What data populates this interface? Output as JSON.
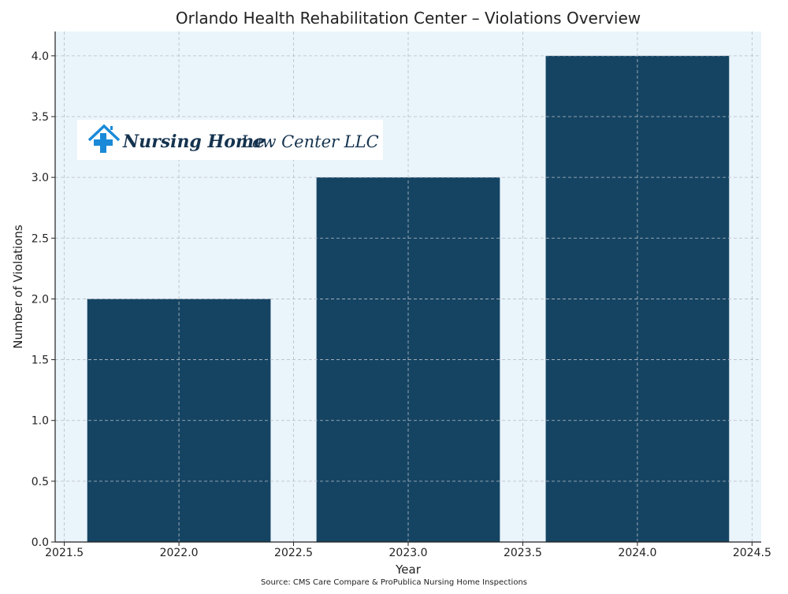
{
  "chart_data": {
    "type": "bar",
    "title": "Orlando Health Rehabilitation Center – Violations Overview",
    "xlabel": "Year",
    "ylabel": "Number of Violations",
    "categories": [
      2022,
      2023,
      2024
    ],
    "values": [
      2,
      3,
      4
    ],
    "bar_width": 0.8,
    "xlim": [
      2021.46,
      2024.54
    ],
    "ylim": [
      0,
      4.2
    ],
    "xticks": [
      "2021.5",
      "2022.0",
      "2022.5",
      "2023.0",
      "2023.5",
      "2024.0",
      "2024.5"
    ],
    "yticks": [
      "0.0",
      "0.5",
      "1.0",
      "1.5",
      "2.0",
      "2.5",
      "3.0",
      "3.5",
      "4.0"
    ],
    "grid": true,
    "colors": {
      "bar": "#154463",
      "plot_background": "#eaf4fb",
      "grid": "#b8bcc4"
    },
    "source": "Source: CMS Care Compare & ProPublica Nursing Home Inspections"
  },
  "logo": {
    "text_bold": "Nursing Home",
    "text_regular": "Law Center LLC",
    "icon": "house-medical-cross-icon",
    "colors": {
      "icon": "#1a8ad8",
      "text": "#15334f"
    }
  }
}
